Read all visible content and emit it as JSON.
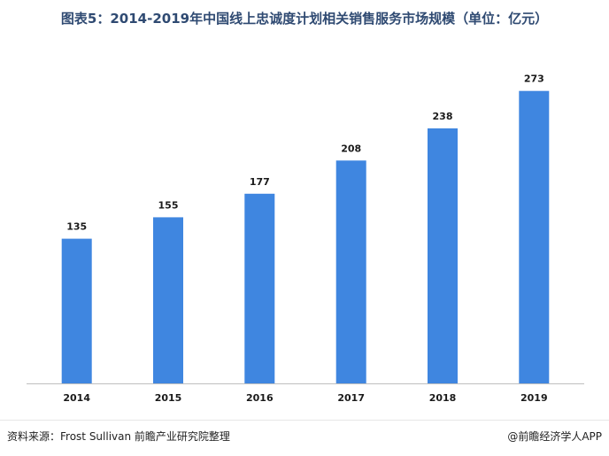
{
  "title": "图表5：2014-2019年中国线上忠诚度计划相关销售服务市场规模（单位：亿元）",
  "footer": {
    "source": "资料来源：Frost Sullivan 前瞻产业研究院整理",
    "brand": "@前瞻经济学人APP"
  },
  "colors": {
    "bar": "#3f86e0",
    "title": "#2f4a72",
    "axis": "#bfbfbf"
  },
  "chart_data": {
    "type": "bar",
    "title": "图表5：2014-2019年中国线上忠诚度计划相关销售服务市场规模（单位：亿元）",
    "categories": [
      "2014",
      "2015",
      "2016",
      "2017",
      "2018",
      "2019"
    ],
    "values": [
      135,
      155,
      177,
      208,
      238,
      273
    ],
    "xlabel": "",
    "ylabel": "",
    "ylim": [
      0,
      300
    ],
    "grid": false,
    "legend": "none",
    "data_labels": true
  }
}
